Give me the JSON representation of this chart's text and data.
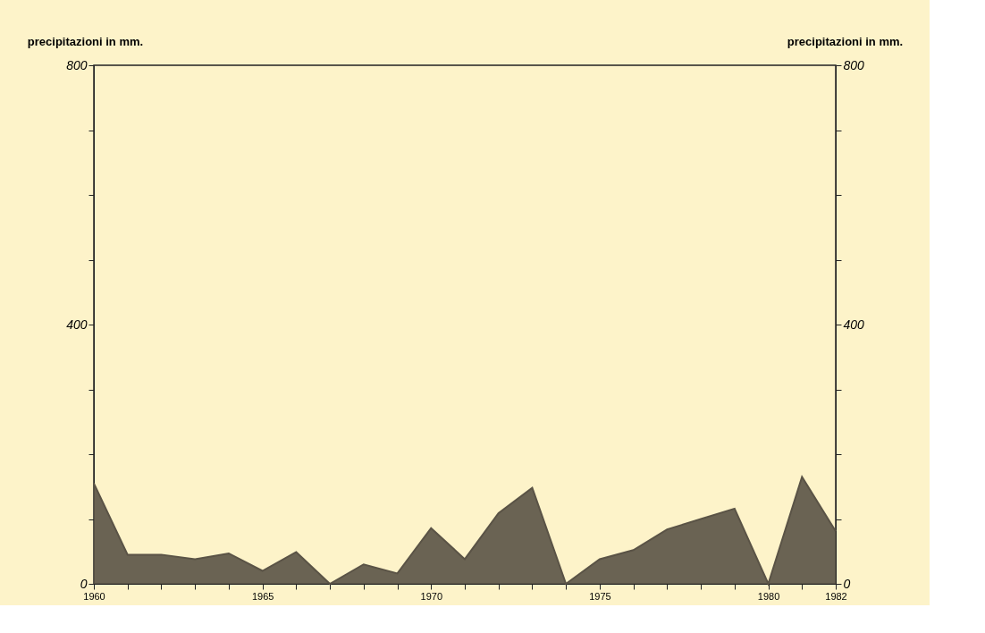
{
  "chart_data": {
    "type": "area",
    "x": [
      1960,
      1961,
      1962,
      1963,
      1964,
      1965,
      1966,
      1967,
      1968,
      1969,
      1970,
      1971,
      1972,
      1973,
      1974,
      1975,
      1976,
      1977,
      1978,
      1979,
      1980,
      1981,
      1982
    ],
    "series": [
      {
        "color": "#5a5346",
        "values": [
          155,
          45,
          45,
          38,
          47,
          20,
          49,
          0,
          30,
          16,
          86,
          38,
          109,
          148,
          0,
          38,
          52,
          84,
          100,
          116,
          0,
          165,
          81
        ]
      }
    ],
    "ylabel": "precipitazioni in mm.",
    "y2label": "precipitazioni in mm.",
    "xlim": [
      1960,
      1982
    ],
    "xticks": [
      1960,
      {
        "value": 1961,
        "label": null
      },
      {
        "value": 1962,
        "label": null
      },
      {
        "value": 1963,
        "label": null
      },
      {
        "value": 1964,
        "label": null
      },
      1965,
      {
        "value": 1966,
        "label": null
      },
      {
        "value": 1967,
        "label": null
      },
      {
        "value": 1968,
        "label": null
      },
      {
        "value": 1969,
        "label": null
      },
      1970,
      {
        "value": 1971,
        "label": null
      },
      {
        "value": 1972,
        "label": null
      },
      {
        "value": 1973,
        "label": null
      },
      {
        "value": 1974,
        "label": null
      },
      1975,
      {
        "value": 1976,
        "label": null
      },
      {
        "value": 1977,
        "label": null
      },
      {
        "value": 1978,
        "label": null
      },
      {
        "value": 1979,
        "label": null
      },
      1980,
      {
        "value": 1981,
        "label": null
      },
      1982
    ],
    "ylim": [
      0,
      800
    ],
    "yticks": [
      0,
      {
        "value": 100,
        "label": null
      },
      {
        "value": 200,
        "label": null
      },
      {
        "value": 300,
        "label": null
      },
      400,
      {
        "value": 500,
        "label": null
      },
      {
        "value": 600,
        "label": null
      },
      {
        "value": 700,
        "label": null
      },
      800
    ],
    "y2lim": [
      0,
      800
    ],
    "y2ticks": [
      0,
      {
        "value": 100,
        "label": null
      },
      {
        "value": 200,
        "label": null
      },
      {
        "value": 300,
        "label": null
      },
      400,
      {
        "value": 500,
        "label": null
      },
      {
        "value": 600,
        "label": null
      },
      {
        "value": 700,
        "label": null
      },
      800
    ],
    "grid": false
  }
}
